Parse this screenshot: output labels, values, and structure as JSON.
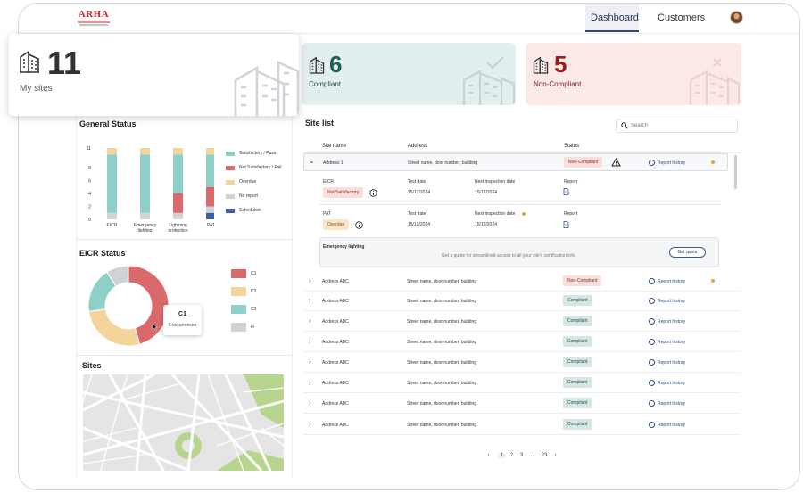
{
  "header": {
    "logo_text": "ARHA",
    "nav": [
      {
        "label": "Dashboard",
        "active": true
      },
      {
        "label": "Customers",
        "active": false
      }
    ]
  },
  "kpis": {
    "my_sites": {
      "value": "11",
      "label": "My sites"
    },
    "compliant": {
      "value": "6",
      "label": "Compliant",
      "color": "#1f5f5b"
    },
    "non_compliant": {
      "value": "5",
      "label": "Non-Compliant",
      "color": "#9b1c1c"
    }
  },
  "general_status": {
    "title": "General Status",
    "y_ticks": [
      "11",
      "8",
      "6",
      "4",
      "2",
      "0"
    ],
    "legend": [
      "Satisfactory / Pass",
      "Not Satisfactory / Fail",
      "Overdue",
      "No report",
      "Scheduled"
    ],
    "colors": {
      "pass": "#8fcfca",
      "fail": "#d9696a",
      "overdue": "#f4d49a",
      "noreport": "#cfd3d8",
      "scheduled": "#3a5fa8"
    }
  },
  "chart_data": [
    {
      "type": "bar",
      "title": "General Status",
      "categories": [
        "EICR",
        "Emergency lighting",
        "Lightning protection",
        "PAT"
      ],
      "ylim": [
        0,
        11
      ],
      "y_ticks": [
        0,
        2,
        4,
        6,
        8,
        11
      ],
      "series": [
        {
          "name": "Scheduled",
          "values": [
            0,
            0,
            0,
            1
          ]
        },
        {
          "name": "No report",
          "values": [
            1,
            1,
            1,
            1
          ]
        },
        {
          "name": "Not Satisfactory / Fail",
          "values": [
            0,
            0,
            3,
            3
          ]
        },
        {
          "name": "Satisfactory / Pass",
          "values": [
            9,
            9,
            6,
            5
          ]
        },
        {
          "name": "Overdue",
          "values": [
            1,
            1,
            1,
            1
          ]
        }
      ]
    },
    {
      "type": "pie",
      "title": "EICR Status",
      "categories": [
        "C1",
        "C2",
        "C3",
        "FI"
      ],
      "values": [
        5,
        3,
        2,
        1
      ]
    }
  ],
  "eicr_status": {
    "title": "EICR Status",
    "legend": [
      "C1",
      "C2",
      "C3",
      "FI"
    ],
    "colors": [
      "#d9696a",
      "#f4d49a",
      "#8fcfca",
      "#cfd3d8"
    ],
    "tooltip": {
      "label": "C1",
      "detail": "5 occurrences"
    }
  },
  "sites_map": {
    "title": "Sites"
  },
  "site_list": {
    "title": "Site list",
    "search_placeholder": "Search",
    "columns": [
      "Site name",
      "Address",
      "Status"
    ],
    "expanded": {
      "name": "Address 1",
      "address": "Street name, door number, building",
      "status": "Non-Compliant",
      "report": "Report history",
      "details": [
        {
          "type": "EICR",
          "badge": "Not Satisfactory",
          "badge_kind": "no",
          "test_label": "Test date",
          "test_date": "15/12/2024",
          "next_label": "Next inspection date",
          "next_date": "15/12/2024",
          "report_label": "Report",
          "dot": false
        },
        {
          "type": "PAT",
          "badge": "Overdue",
          "badge_kind": "ov",
          "test_label": "Test date",
          "test_date": "15/12/2024",
          "next_label": "Next inspection date",
          "next_date": "15/12/2024",
          "report_label": "Report",
          "dot": true
        }
      ],
      "emergency": {
        "title": "Emergency lighting",
        "text": "Get a quote for streamlined access to all your site's certification info.",
        "button": "Get quote"
      }
    },
    "rows": [
      {
        "name": "Address ABC",
        "address": "Street name, door number, building",
        "status": "Non-Compliant",
        "kind": "no",
        "report": "Report history",
        "dot": true
      },
      {
        "name": "Address ABC",
        "address": "Street name, door number, building",
        "status": "Compliant",
        "kind": "ok",
        "report": "Report history",
        "dot": false
      },
      {
        "name": "Address ABC",
        "address": "Street name, door number, building",
        "status": "Compliant",
        "kind": "ok",
        "report": "Report history",
        "dot": false
      },
      {
        "name": "Address ABC",
        "address": "Street name, door number, building",
        "status": "Compliant",
        "kind": "ok",
        "report": "Report history",
        "dot": false
      },
      {
        "name": "Address ABC",
        "address": "Street name, door number, building",
        "status": "Compliant",
        "kind": "ok",
        "report": "Report history",
        "dot": false
      },
      {
        "name": "Address ABC",
        "address": "Street name, door number, building",
        "status": "Compliant",
        "kind": "ok",
        "report": "Report history",
        "dot": false
      },
      {
        "name": "Address ABC",
        "address": "Street name, door number, building",
        "status": "Compliant",
        "kind": "ok",
        "report": "Report history",
        "dot": false
      },
      {
        "name": "Address ABC",
        "address": "Street name, door number, building",
        "status": "Compliant",
        "kind": "ok",
        "report": "Report history",
        "dot": false
      }
    ],
    "pagination": {
      "pages": [
        "1",
        "2",
        "3",
        "...",
        "23"
      ],
      "current": "1"
    }
  }
}
